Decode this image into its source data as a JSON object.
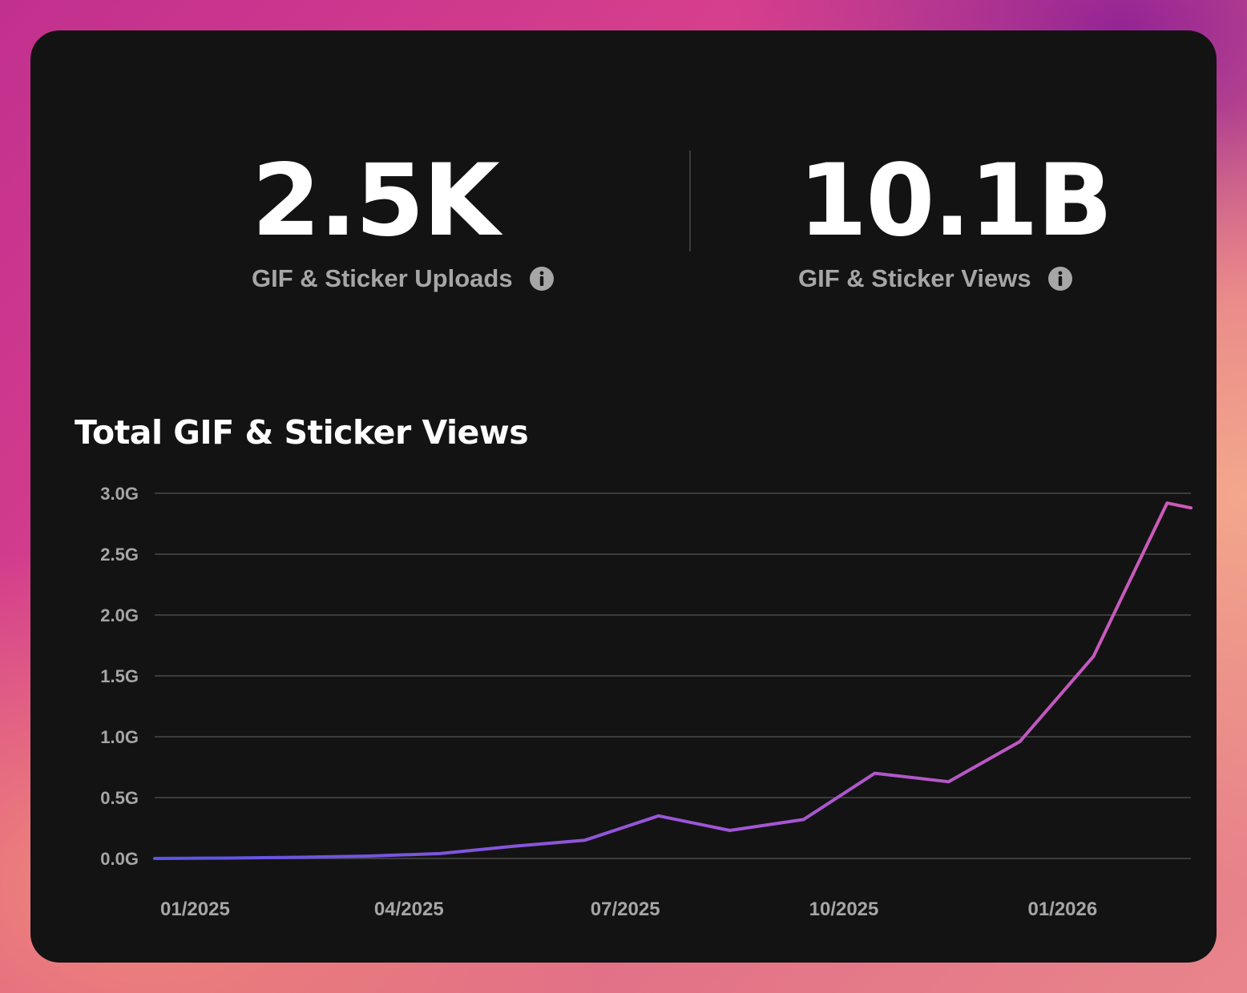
{
  "stats": {
    "uploads": {
      "value": "2.5K",
      "label": "GIF & Sticker Uploads",
      "icon": "info-icon"
    },
    "views": {
      "value": "10.1B",
      "label": "GIF & Sticker Views",
      "icon": "info-icon"
    }
  },
  "colors": {
    "card_background": "#131313",
    "line_start": "#5a55e6",
    "line_mid": "#9a55d8",
    "line_end": "#d05ab8",
    "grid": "#3c3c3c",
    "label": "#a6a6a6"
  },
  "chart_data": {
    "type": "line",
    "title": "Total GIF & Sticker Views",
    "xlabel": "",
    "ylabel": "",
    "grid": true,
    "legend": "none",
    "y_ticks": [
      "0.0G",
      "0.5G",
      "1.0G",
      "1.5G",
      "2.0G",
      "2.5G",
      "3.0G"
    ],
    "ylim": [
      0,
      3.0
    ],
    "x_ticks": [
      {
        "date": "2025-01-15",
        "label": "01/2025"
      },
      {
        "date": "2025-04-15",
        "label": "04/2025"
      },
      {
        "date": "2025-07-15",
        "label": "07/2025"
      },
      {
        "date": "2025-10-15",
        "label": "10/2025"
      },
      {
        "date": "2026-01-15",
        "label": "01/2026"
      }
    ],
    "xlim": [
      "2024-12-29",
      "2026-03-10"
    ],
    "series": [
      {
        "values_unit": "G",
        "points": [
          {
            "x": "2024-12-29",
            "y": 0.0
          },
          {
            "x": "2025-01-29",
            "y": 0.003
          },
          {
            "x": "2025-02-28",
            "y": 0.01
          },
          {
            "x": "2025-03-29",
            "y": 0.02
          },
          {
            "x": "2025-04-28",
            "y": 0.04
          },
          {
            "x": "2025-05-29",
            "y": 0.1
          },
          {
            "x": "2025-06-28",
            "y": 0.15
          },
          {
            "x": "2025-07-29",
            "y": 0.35
          },
          {
            "x": "2025-08-28",
            "y": 0.23
          },
          {
            "x": "2025-09-28",
            "y": 0.32
          },
          {
            "x": "2025-10-28",
            "y": 0.7
          },
          {
            "x": "2025-11-28",
            "y": 0.63
          },
          {
            "x": "2025-12-28",
            "y": 0.96
          },
          {
            "x": "2026-01-28",
            "y": 1.66
          },
          {
            "x": "2026-02-28",
            "y": 2.92
          },
          {
            "x": "2026-03-10",
            "y": 2.88
          }
        ]
      }
    ]
  }
}
